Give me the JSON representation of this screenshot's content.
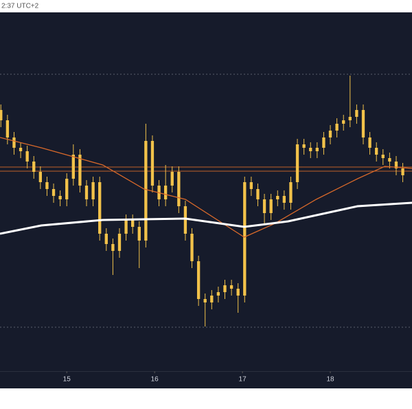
{
  "header_text": "2:37 UTC+2",
  "chart_data": {
    "type": "candlestick",
    "background": "#161b2b",
    "candle_color": "#f2c24a",
    "x": [
      14.25,
      14.325,
      14.4,
      14.475,
      14.55,
      14.625,
      14.7,
      14.775,
      14.85,
      14.925,
      15.0,
      15.075,
      15.15,
      15.225,
      15.3,
      15.375,
      15.45,
      15.525,
      15.6,
      15.675,
      15.75,
      15.825,
      15.9,
      15.975,
      16.05,
      16.125,
      16.2,
      16.275,
      16.35,
      16.425,
      16.5,
      16.575,
      16.65,
      16.725,
      16.8,
      16.875,
      16.95,
      17.025,
      17.1,
      17.175,
      17.25,
      17.325,
      17.4,
      17.475,
      17.55,
      17.625,
      17.7,
      17.775,
      17.85,
      17.925,
      18.0,
      18.075,
      18.15,
      18.225,
      18.3,
      18.375,
      18.45,
      18.525,
      18.6,
      18.675,
      18.75,
      18.825
    ],
    "open": [
      380,
      365,
      340,
      325,
      320,
      305,
      290,
      275,
      265,
      255,
      250,
      280,
      315,
      270,
      250,
      275,
      200,
      185,
      175,
      200,
      220,
      210,
      190,
      335,
      270,
      250,
      270,
      290,
      240,
      200,
      160,
      105,
      100,
      110,
      115,
      125,
      120,
      110,
      275,
      265,
      250,
      230,
      250,
      255,
      245,
      275,
      330,
      325,
      320,
      325,
      340,
      350,
      360,
      365,
      370,
      380,
      340,
      325,
      315,
      310,
      305,
      295
    ],
    "high": [
      388,
      373,
      348,
      333,
      328,
      313,
      298,
      283,
      273,
      263,
      288,
      330,
      323,
      278,
      283,
      283,
      208,
      193,
      208,
      228,
      228,
      218,
      360,
      343,
      278,
      300,
      298,
      298,
      248,
      208,
      168,
      113,
      118,
      123,
      133,
      133,
      128,
      283,
      283,
      273,
      258,
      258,
      263,
      263,
      283,
      338,
      338,
      333,
      333,
      348,
      358,
      368,
      373,
      430,
      388,
      388,
      348,
      333,
      323,
      318,
      313,
      303
    ],
    "low": [
      355,
      330,
      315,
      310,
      295,
      280,
      265,
      255,
      245,
      240,
      240,
      270,
      260,
      240,
      240,
      190,
      175,
      140,
      165,
      190,
      200,
      150,
      180,
      260,
      240,
      240,
      260,
      230,
      190,
      150,
      95,
      65,
      90,
      100,
      105,
      110,
      85,
      100,
      255,
      240,
      215,
      220,
      240,
      235,
      235,
      265,
      315,
      310,
      310,
      315,
      330,
      340,
      350,
      355,
      360,
      330,
      315,
      305,
      300,
      295,
      285,
      275
    ],
    "close": [
      365,
      340,
      325,
      320,
      305,
      290,
      275,
      265,
      255,
      250,
      280,
      315,
      270,
      250,
      275,
      200,
      185,
      175,
      200,
      220,
      210,
      190,
      335,
      270,
      250,
      270,
      290,
      240,
      200,
      160,
      105,
      100,
      110,
      115,
      125,
      120,
      110,
      275,
      265,
      250,
      230,
      250,
      255,
      245,
      275,
      330,
      325,
      320,
      325,
      340,
      350,
      360,
      365,
      370,
      380,
      340,
      325,
      315,
      310,
      305,
      295,
      285
    ],
    "lines": [
      {
        "color": "#d9692a",
        "width": 1.3,
        "x": [
          14.24,
          14.71,
          15.41,
          15.88,
          16.35,
          17.02,
          17.37,
          17.84,
          18.31,
          18.62,
          18.93
        ],
        "values": [
          340,
          325,
          300,
          265,
          250,
          195,
          215,
          250,
          280,
          298,
          295
        ]
      },
      {
        "color": "#ffffff",
        "width": 3,
        "x": [
          14.24,
          14.71,
          15.41,
          16.35,
          17.02,
          17.52,
          18.31,
          18.93
        ],
        "values": [
          200,
          212,
          220,
          222,
          210,
          218,
          240,
          245
        ]
      }
    ],
    "price_lines": [
      {
        "value": 432,
        "color": "#5a5f6e",
        "dash": true
      },
      {
        "value": 297,
        "color": "#c0622a",
        "dash": false
      },
      {
        "value": 291,
        "color": "#c0622a",
        "dash": false
      },
      {
        "value": 64,
        "color": "#5a5f6e",
        "dash": true
      }
    ],
    "xlim": [
      14.24,
      18.93
    ],
    "ylim": [
      0,
      522
    ],
    "xticks": [
      15,
      16,
      17,
      18
    ]
  }
}
